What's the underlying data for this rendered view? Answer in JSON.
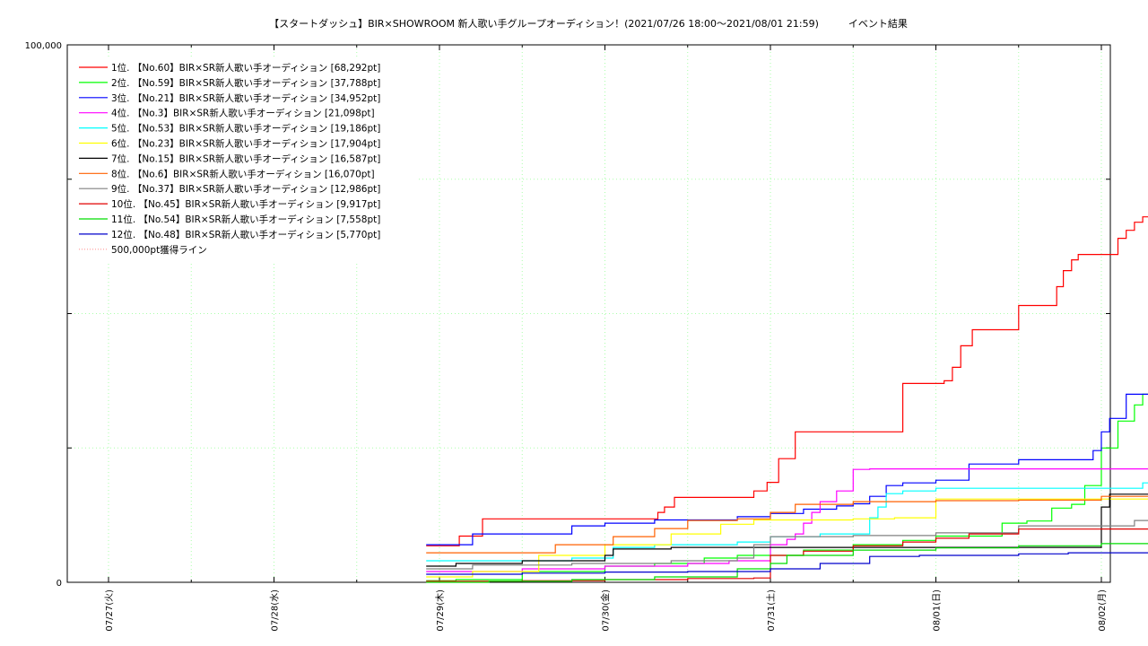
{
  "chart_data": {
    "type": "line",
    "title": "【スタートダッシュ】BIR×SHOWROOM 新人歌い手グループオーディション！(2021/07/26 18:00〜2021/08/01 21:59)　　　イベント結果",
    "xlabel": "",
    "ylabel": "",
    "ylim": [
      0,
      100000
    ],
    "xlim": [
      0,
      6.0
    ],
    "y_ticks": [
      {
        "value": 0,
        "label": "0"
      },
      {
        "value": 100000,
        "label": "100,000"
      }
    ],
    "x_ticks": [
      {
        "value": 0,
        "label": "07/27(火)"
      },
      {
        "value": 1,
        "label": "07/28(水)"
      },
      {
        "value": 2,
        "label": "07/29(木)"
      },
      {
        "value": 3,
        "label": "07/30(金)"
      },
      {
        "value": 4,
        "label": "07/31(土)"
      },
      {
        "value": 5,
        "label": "08/01(日)"
      },
      {
        "value": 6,
        "label": "08/02(月)"
      }
    ],
    "grid": true,
    "legend_position": "top-left",
    "series": [
      {
        "name": "1位. 【No.60】BIR×SR新人歌い手オーディション [68,292pt]",
        "color": "#ff0000",
        "x": [
          1.92,
          2.06,
          2.12,
          2.2,
          2.26,
          3.3,
          3.32,
          3.36,
          3.42,
          3.5,
          3.55,
          3.6,
          3.8,
          3.9,
          3.98,
          4.05,
          4.15,
          4.25,
          4.45,
          4.8,
          5.05,
          5.1,
          5.15,
          5.22,
          5.4,
          5.5,
          5.6,
          5.73,
          5.77,
          5.82,
          5.86,
          5.9,
          5.95,
          6.0,
          6.0,
          6.1,
          6.15,
          6.2,
          6.25,
          6.32
        ],
        "y": [
          6800,
          6800,
          8600,
          8600,
          11800,
          11800,
          13000,
          14000,
          15800,
          15800,
          15800,
          15800,
          15800,
          17000,
          18600,
          23000,
          28000,
          28000,
          28000,
          37000,
          37500,
          40000,
          44000,
          47000,
          47000,
          51500,
          51500,
          55000,
          58000,
          60000,
          61000,
          61000,
          61000,
          61000,
          61000,
          64000,
          65500,
          67000,
          68000,
          68292
        ]
      },
      {
        "name": "2位. 【No.59】BIR×SR新人歌い手オーディション [37,788pt]",
        "color": "#00ff00",
        "x": [
          1.92,
          2.1,
          2.5,
          3.0,
          3.3,
          3.6,
          3.8,
          4.2,
          4.5,
          4.8,
          5.0,
          5.4,
          5.55,
          5.7,
          5.82,
          5.9,
          6.0,
          6.1,
          6.2,
          6.25,
          6.32
        ],
        "y": [
          300,
          500,
          2000,
          3000,
          3500,
          4500,
          5000,
          6000,
          7000,
          7800,
          8600,
          11000,
          11400,
          13800,
          14500,
          18000,
          25000,
          30000,
          33000,
          35000,
          37788
        ]
      },
      {
        "name": "3位. 【No.21】BIR×SR新人歌い手オーディション [34,952pt]",
        "color": "#0000ff",
        "x": [
          1.92,
          2.1,
          2.2,
          2.6,
          2.8,
          3.0,
          3.3,
          3.55,
          3.8,
          4.0,
          4.2,
          4.4,
          4.5,
          4.6,
          4.7,
          4.8,
          5.0,
          5.2,
          5.5,
          5.75,
          5.9,
          5.95,
          6.0,
          6.05,
          6.15,
          6.32
        ],
        "y": [
          7000,
          7000,
          9000,
          9000,
          10500,
          11000,
          11600,
          11600,
          12200,
          12800,
          13600,
          14200,
          14600,
          16000,
          18000,
          18500,
          19000,
          22000,
          22800,
          22800,
          22800,
          24500,
          28000,
          30500,
          35000,
          35000
        ]
      },
      {
        "name": "4位. 【No.3】BIR×SR新人歌い手オーディション [21,098pt]",
        "color": "#ff00ff",
        "x": [
          1.92,
          2.5,
          3.0,
          3.5,
          3.75,
          4.0,
          4.1,
          4.15,
          4.2,
          4.25,
          4.3,
          4.4,
          4.5,
          4.6,
          5.0,
          5.5,
          6.32
        ],
        "y": [
          2000,
          2500,
          3000,
          3500,
          4000,
          7000,
          8000,
          9000,
          11000,
          13000,
          15000,
          17000,
          21000,
          21098,
          21098,
          21098,
          21098
        ]
      },
      {
        "name": "5位. 【No.53】BIR×SR新人歌い手オーディション [19,186pt]",
        "color": "#00ffff",
        "x": [
          1.92,
          2.3,
          2.8,
          3.05,
          3.3,
          3.6,
          3.8,
          4.0,
          4.3,
          4.55,
          4.6,
          4.65,
          4.7,
          4.8,
          5.0,
          5.5,
          6.2,
          6.25,
          6.32
        ],
        "y": [
          4000,
          4000,
          4500,
          6500,
          7000,
          7000,
          7500,
          8500,
          9000,
          9000,
          12000,
          14000,
          16500,
          17000,
          17500,
          17500,
          17500,
          18500,
          19186
        ]
      },
      {
        "name": "6位. 【No.23】BIR×SR新人歌い手オーディション [17,904pt]",
        "color": "#ffff00",
        "x": [
          1.92,
          2.2,
          2.6,
          3.0,
          3.4,
          3.7,
          3.9,
          4.2,
          4.5,
          4.75,
          5.0,
          5.5,
          6.0,
          6.32
        ],
        "y": [
          1000,
          2000,
          5000,
          7000,
          9000,
          10800,
          11600,
          11600,
          11800,
          12000,
          15500,
          15500,
          15500,
          17904
        ]
      },
      {
        "name": "7位. 【No.15】BIR×SR新人歌い手オーディション [16,587pt]",
        "color": "#000000",
        "x": [
          1.92,
          2.1,
          2.5,
          2.8,
          3.0,
          3.05,
          3.4,
          4.0,
          4.6,
          5.0,
          5.5,
          5.95,
          6.0,
          6.05,
          6.32
        ],
        "y": [
          3000,
          3500,
          4000,
          4000,
          5000,
          6200,
          6500,
          6500,
          6500,
          6500,
          6500,
          6500,
          14000,
          16400,
          16587
        ]
      },
      {
        "name": "8位. 【No.6】BIR×SR新人歌い手オーディション [16,070pt]",
        "color": "#ff6000",
        "x": [
          1.92,
          2.4,
          2.7,
          3.05,
          3.3,
          3.5,
          3.8,
          4.0,
          4.15,
          4.5,
          4.7,
          5.0,
          5.5,
          6.0,
          6.32
        ],
        "y": [
          5500,
          5500,
          7000,
          8500,
          10000,
          11500,
          11800,
          13000,
          14500,
          15000,
          15000,
          15200,
          15300,
          16000,
          16070
        ]
      },
      {
        "name": "9位. 【No.37】BIR×SR新人歌い手オーディション [12,986pt]",
        "color": "#808080",
        "x": [
          1.92,
          2.2,
          2.8,
          3.4,
          3.8,
          3.9,
          4.0,
          4.5,
          5.0,
          5.5,
          6.0,
          6.2,
          6.32
        ],
        "y": [
          2500,
          3200,
          3500,
          4000,
          4500,
          7000,
          8500,
          8700,
          9200,
          10500,
          10500,
          11500,
          12986
        ]
      },
      {
        "name": "10位. 【No.45】BIR×SR新人歌い手オーディション [9,917pt]",
        "color": "#e00000",
        "x": [
          1.92,
          2.5,
          3.0,
          3.5,
          3.9,
          4.0,
          4.2,
          4.5,
          4.8,
          5.0,
          5.2,
          5.5,
          6.0,
          6.32
        ],
        "y": [
          200,
          300,
          500,
          700,
          800,
          5000,
          5800,
          6800,
          7500,
          8200,
          9000,
          9900,
          9917,
          9917
        ]
      },
      {
        "name": "11位. 【No.54】BIR×SR新人歌い手オーディション [7,558pt]",
        "color": "#00dd00",
        "x": [
          1.92,
          2.3,
          2.8,
          3.3,
          3.8,
          4.0,
          4.1,
          4.5,
          5.0,
          5.5,
          6.0,
          6.32
        ],
        "y": [
          0,
          200,
          500,
          1000,
          2500,
          3500,
          5000,
          6000,
          6400,
          6800,
          7200,
          7558
        ]
      },
      {
        "name": "12位. 【No.48】BIR×SR新人歌い手オーディション [5,770pt]",
        "color": "#0000cc",
        "x": [
          1.92,
          2.5,
          3.0,
          3.5,
          3.95,
          4.0,
          4.3,
          4.6,
          4.9,
          5.0,
          5.5,
          5.8,
          6.3,
          6.32
        ],
        "y": [
          1500,
          1700,
          1900,
          2000,
          2000,
          2500,
          3500,
          4800,
          5000,
          5000,
          5300,
          5500,
          5700,
          5770
        ]
      },
      {
        "name": "500,000pt獲得ライン",
        "color": "#ff9999",
        "dotted": true,
        "x": [],
        "y": []
      }
    ]
  }
}
